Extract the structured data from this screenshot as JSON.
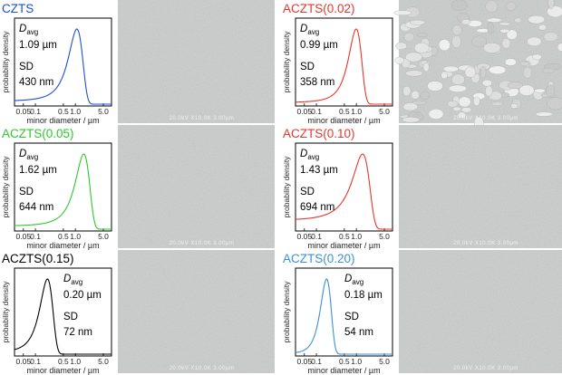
{
  "figure": {
    "y_axis_label": "probability density",
    "x_axis_label": "minor diameter / µm",
    "avg_label_main": "D",
    "avg_label_sub": "avg",
    "sd_label": "SD",
    "sem_scale_text": "20.0kV X10.0K 3.00µm"
  },
  "chart_data": [
    {
      "type": "line",
      "title": "CZTS",
      "title_color": "#1a4fd6",
      "line_color": "#1a4fd6",
      "xlabel": "minor diameter / µm",
      "ylabel": "probability density",
      "x_scale": "log",
      "xlim": [
        0.03,
        8
      ],
      "x_ticks": [
        "0.05",
        "0.1",
        "0.5",
        "1.0",
        "5.0"
      ],
      "grid": false,
      "avg_value": "1.09 µm",
      "sd_value": "430 nm",
      "series": [
        {
          "distribution": "gaussian",
          "mean": 1.09,
          "sd": 0.43
        }
      ]
    },
    {
      "type": "line",
      "title": "ACZTS(0.02)",
      "title_color": "#e8352b",
      "line_color": "#e8352b",
      "xlabel": "minor diameter / µm",
      "ylabel": "probability density",
      "x_scale": "log",
      "xlim": [
        0.03,
        8
      ],
      "x_ticks": [
        "0.05",
        "0.1",
        "0.5",
        "1.0",
        "5.0"
      ],
      "grid": false,
      "avg_value": "0.99 µm",
      "sd_value": "358 nm",
      "series": [
        {
          "distribution": "gaussian",
          "mean": 0.99,
          "sd": 0.358
        }
      ]
    },
    {
      "type": "line",
      "title": "ACZTS(0.05)",
      "title_color": "#2ec72e",
      "line_color": "#2ec72e",
      "xlabel": "minor diameter / µm",
      "ylabel": "probability density",
      "x_scale": "log",
      "xlim": [
        0.03,
        8
      ],
      "x_ticks": [
        "0.05",
        "0.1",
        "0.5",
        "1.0",
        "5.0"
      ],
      "grid": false,
      "avg_value": "1.62 µm",
      "sd_value": "644 nm",
      "series": [
        {
          "distribution": "gaussian",
          "mean": 1.62,
          "sd": 0.644
        }
      ]
    },
    {
      "type": "line",
      "title": "ACZTS(0.10)",
      "title_color": "#e8352b",
      "line_color": "#e8352b",
      "xlabel": "minor diameter / µm",
      "ylabel": "probability density",
      "x_scale": "log",
      "xlim": [
        0.03,
        8
      ],
      "x_ticks": [
        "0.05",
        "0.1",
        "0.5",
        "1.0",
        "5.0"
      ],
      "grid": false,
      "avg_value": "1.43 µm",
      "sd_value": "694 nm",
      "series": [
        {
          "distribution": "gaussian",
          "mean": 1.43,
          "sd": 0.694
        }
      ]
    },
    {
      "type": "line",
      "title": "ACZTS(0.15)",
      "title_color": "#000000",
      "line_color": "#000000",
      "xlabel": "minor diameter / µm",
      "ylabel": "probability density",
      "x_scale": "log",
      "xlim": [
        0.03,
        8
      ],
      "x_ticks": [
        "0.05",
        "0.1",
        "0.5",
        "1.0",
        "5.0"
      ],
      "grid": false,
      "avg_value": "0.20 µm",
      "sd_value": "72 nm",
      "series": [
        {
          "distribution": "gaussian",
          "mean": 0.2,
          "sd": 0.072
        }
      ]
    },
    {
      "type": "line",
      "title": "ACZTS(0.20)",
      "title_color": "#3a8fd9",
      "line_color": "#3a8fd9",
      "xlabel": "minor diameter / µm",
      "ylabel": "probability density",
      "x_scale": "log",
      "xlim": [
        0.03,
        8
      ],
      "x_ticks": [
        "0.05",
        "0.1",
        "0.5",
        "1.0",
        "5.0"
      ],
      "grid": false,
      "avg_value": "0.18 µm",
      "sd_value": "54 nm",
      "series": [
        {
          "distribution": "gaussian",
          "mean": 0.18,
          "sd": 0.054
        }
      ]
    }
  ]
}
